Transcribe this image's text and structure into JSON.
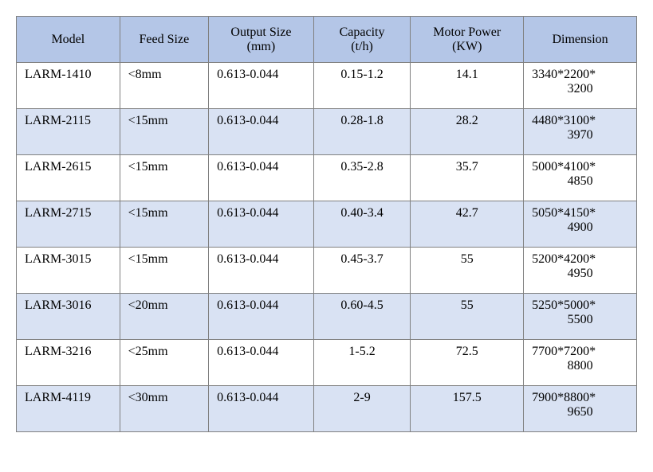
{
  "table": {
    "header_bg": "#b4c6e7",
    "row_alt_bg": "#d9e2f3",
    "row_bg": "#ffffff",
    "border_color": "#808080",
    "text_color": "#000000",
    "font_family": "Times New Roman",
    "font_size": 16,
    "columns": [
      {
        "label_l1": "Model",
        "label_l2": ""
      },
      {
        "label_l1": "Feed Size",
        "label_l2": ""
      },
      {
        "label_l1": "Output Size",
        "label_l2": "(mm)"
      },
      {
        "label_l1": "Capacity",
        "label_l2": "(t/h)"
      },
      {
        "label_l1": "Motor Power",
        "label_l2": "(KW)"
      },
      {
        "label_l1": "Dimension",
        "label_l2": ""
      }
    ],
    "rows": [
      {
        "model": "LARM-1410",
        "feed": "<8mm",
        "output": "0.613-0.044",
        "capacity": "0.15-1.2",
        "power": "14.1",
        "dim_l1": "3340*2200*",
        "dim_l2": "3200"
      },
      {
        "model": "LARM-2115",
        "feed": "<15mm",
        "output": "0.613-0.044",
        "capacity": "0.28-1.8",
        "power": "28.2",
        "dim_l1": "4480*3100*",
        "dim_l2": "3970"
      },
      {
        "model": "LARM-2615",
        "feed": "<15mm",
        "output": "0.613-0.044",
        "capacity": "0.35-2.8",
        "power": "35.7",
        "dim_l1": "5000*4100*",
        "dim_l2": "4850"
      },
      {
        "model": "LARM-2715",
        "feed": "<15mm",
        "output": "0.613-0.044",
        "capacity": "0.40-3.4",
        "power": "42.7",
        "dim_l1": "5050*4150*",
        "dim_l2": "4900"
      },
      {
        "model": "LARM-3015",
        "feed": "<15mm",
        "output": "0.613-0.044",
        "capacity": "0.45-3.7",
        "power": "55",
        "dim_l1": "5200*4200*",
        "dim_l2": "4950"
      },
      {
        "model": "LARM-3016",
        "feed": "<20mm",
        "output": "0.613-0.044",
        "capacity": "0.60-4.5",
        "power": "55",
        "dim_l1": "5250*5000*",
        "dim_l2": "5500"
      },
      {
        "model": "LARM-3216",
        "feed": "<25mm",
        "output": "0.613-0.044",
        "capacity": "1-5.2",
        "power": "72.5",
        "dim_l1": "7700*7200*",
        "dim_l2": "8800"
      },
      {
        "model": "LARM-4119",
        "feed": "<30mm",
        "output": "0.613-0.044",
        "capacity": "2-9",
        "power": "157.5",
        "dim_l1": "7900*8800*",
        "dim_l2": "9650"
      }
    ]
  }
}
